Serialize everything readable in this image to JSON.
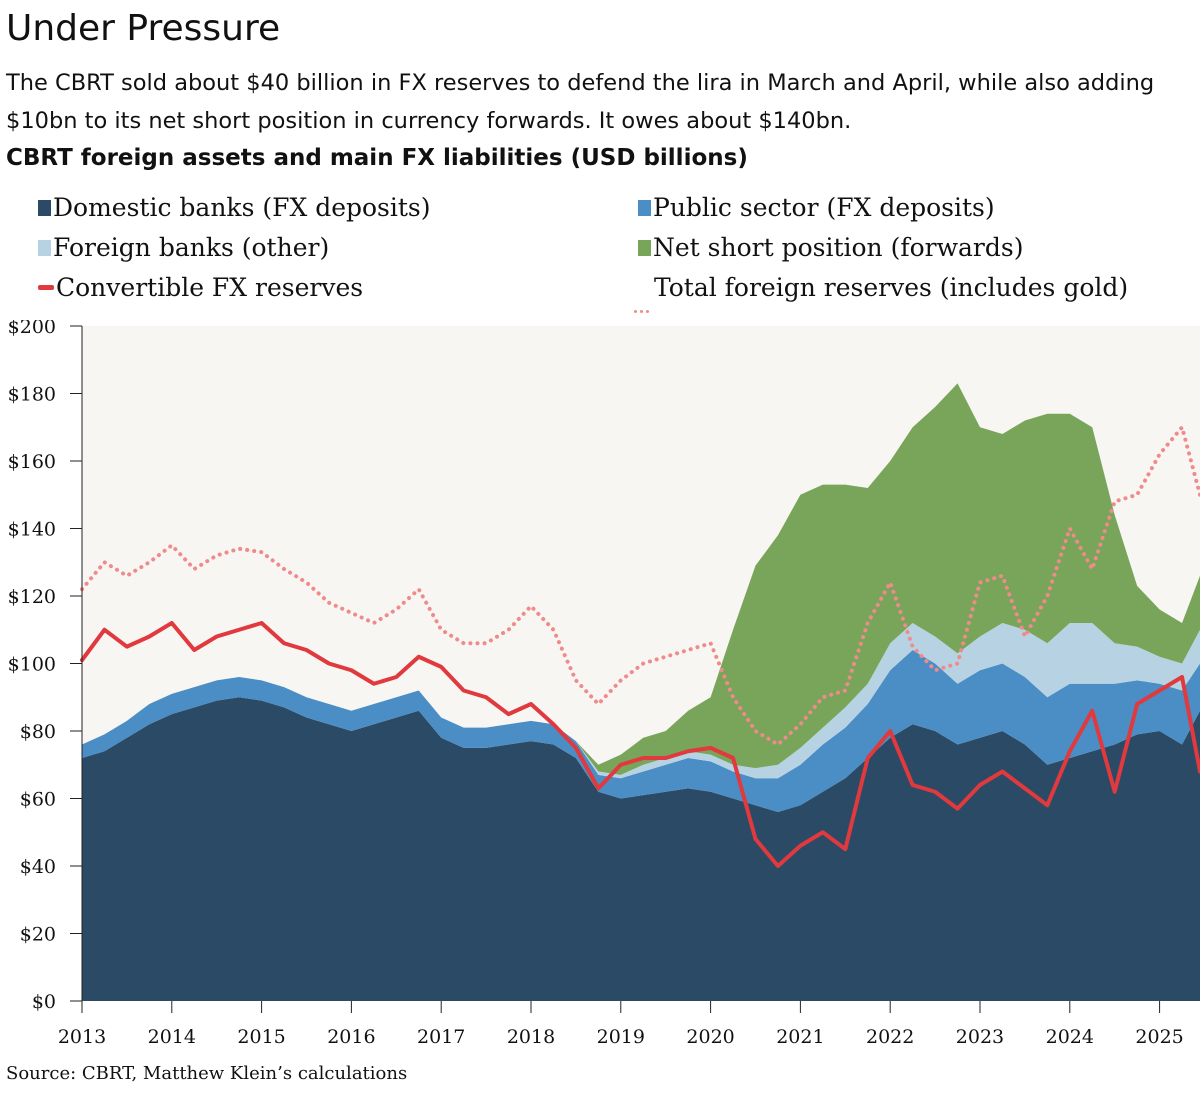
{
  "header": {
    "title": "Under Pressure",
    "subtitle": "The CBRT sold about $40 billion in FX reserves to defend the lira in March and April, while also adding $10bn to its net short position in currency forwards. It owes about $140bn."
  },
  "footer": {
    "source": "Source: CBRT, Matthew Klein’s calculations"
  },
  "chart_data": {
    "type": "area",
    "title": "CBRT foreign assets and main FX liabilities (USD billions)",
    "xlabel": "",
    "ylabel": "",
    "xlim": [
      2013.0,
      2025.45
    ],
    "ylim": [
      0,
      200
    ],
    "y_ticks": [
      0,
      20,
      40,
      60,
      80,
      100,
      120,
      140,
      160,
      180,
      200
    ],
    "y_tick_labels": [
      "$0",
      "$20",
      "$40",
      "$60",
      "$80",
      "$100",
      "$120",
      "$140",
      "$160",
      "$180",
      "$200"
    ],
    "x_ticks": [
      2013,
      2014,
      2015,
      2016,
      2017,
      2018,
      2019,
      2020,
      2021,
      2022,
      2023,
      2024,
      2025
    ],
    "x_tick_labels": [
      "2013",
      "2014",
      "2015",
      "2016",
      "2017",
      "2018",
      "2019",
      "2020",
      "2021",
      "2022",
      "2023",
      "2024",
      "2025"
    ],
    "grid": false,
    "plot_background": "#f8f6f3",
    "legend_position": "top",
    "x": [
      2013.0,
      2013.25,
      2013.5,
      2013.75,
      2014.0,
      2014.25,
      2014.5,
      2014.75,
      2015.0,
      2015.25,
      2015.5,
      2015.75,
      2016.0,
      2016.25,
      2016.5,
      2016.75,
      2017.0,
      2017.25,
      2017.5,
      2017.75,
      2018.0,
      2018.25,
      2018.5,
      2018.75,
      2019.0,
      2019.25,
      2019.5,
      2019.75,
      2020.0,
      2020.25,
      2020.5,
      2020.75,
      2021.0,
      2021.25,
      2021.5,
      2021.75,
      2022.0,
      2022.25,
      2022.5,
      2022.75,
      2023.0,
      2023.25,
      2023.5,
      2023.75,
      2024.0,
      2024.25,
      2024.5,
      2024.75,
      2025.0,
      2025.25,
      2025.45
    ],
    "series": [
      {
        "name": "Domestic banks (FX deposits)",
        "kind": "stacked-area",
        "color": "#2b4a66",
        "values": [
          72,
          74,
          78,
          82,
          85,
          87,
          89,
          90,
          89,
          87,
          84,
          82,
          80,
          82,
          84,
          86,
          78,
          75,
          75,
          76,
          77,
          76,
          72,
          62,
          60,
          61,
          62,
          63,
          62,
          60,
          58,
          56,
          58,
          62,
          66,
          72,
          78,
          82,
          80,
          76,
          78,
          80,
          76,
          70,
          72,
          74,
          76,
          79,
          80,
          76,
          86
        ]
      },
      {
        "name": "Public sector (FX deposits)",
        "kind": "stacked-area",
        "color": "#4a8ec5",
        "values": [
          4,
          5,
          5,
          6,
          6,
          6,
          6,
          6,
          6,
          6,
          6,
          6,
          6,
          6,
          6,
          6,
          6,
          6,
          6,
          6,
          6,
          6,
          5,
          5,
          6,
          7,
          8,
          9,
          9,
          8,
          8,
          10,
          12,
          14,
          15,
          16,
          20,
          22,
          20,
          18,
          20,
          20,
          20,
          20,
          22,
          20,
          18,
          16,
          14,
          16,
          14
        ]
      },
      {
        "name": "Foreign banks (other)",
        "kind": "stacked-area",
        "color": "#b7d3e3",
        "values": [
          0,
          0,
          0,
          0,
          0,
          0,
          0,
          0,
          0,
          0,
          0,
          0,
          0,
          0,
          0,
          0,
          0,
          0,
          0,
          0,
          0,
          0,
          0,
          1,
          1,
          2,
          2,
          2,
          2,
          2,
          3,
          4,
          5,
          5,
          6,
          6,
          8,
          8,
          8,
          9,
          10,
          12,
          14,
          16,
          18,
          18,
          12,
          10,
          8,
          8,
          10
        ]
      },
      {
        "name": "Net short position (forwards)",
        "kind": "stacked-area",
        "color": "#79a55a",
        "values": [
          0,
          0,
          0,
          0,
          0,
          0,
          0,
          0,
          0,
          0,
          0,
          0,
          0,
          0,
          0,
          0,
          0,
          0,
          0,
          0,
          0,
          0,
          0,
          2,
          6,
          8,
          8,
          12,
          17,
          40,
          60,
          68,
          75,
          72,
          66,
          58,
          54,
          58,
          68,
          80,
          62,
          56,
          62,
          68,
          62,
          58,
          38,
          18,
          14,
          12,
          16
        ]
      },
      {
        "name": "Convertible FX reserves",
        "kind": "line",
        "color": "#e0393e",
        "values": [
          101,
          110,
          105,
          108,
          112,
          104,
          108,
          110,
          112,
          106,
          104,
          100,
          98,
          94,
          96,
          102,
          99,
          92,
          90,
          85,
          88,
          82,
          75,
          63,
          70,
          72,
          72,
          74,
          75,
          72,
          48,
          40,
          46,
          50,
          45,
          72,
          80,
          64,
          62,
          57,
          64,
          68,
          63,
          58,
          74,
          86,
          62,
          88,
          92,
          96,
          68
        ]
      },
      {
        "name": "Total foreign reserves (includes gold)",
        "kind": "dotted-line",
        "color": "#f08b8b",
        "values": [
          122,
          130,
          126,
          130,
          135,
          128,
          132,
          134,
          133,
          128,
          124,
          118,
          115,
          112,
          116,
          122,
          110,
          106,
          106,
          110,
          117,
          110,
          95,
          88,
          95,
          100,
          102,
          104,
          106,
          90,
          80,
          76,
          82,
          90,
          92,
          112,
          124,
          105,
          98,
          100,
          124,
          126,
          108,
          120,
          140,
          128,
          148,
          150,
          162,
          170,
          150
        ]
      }
    ]
  }
}
